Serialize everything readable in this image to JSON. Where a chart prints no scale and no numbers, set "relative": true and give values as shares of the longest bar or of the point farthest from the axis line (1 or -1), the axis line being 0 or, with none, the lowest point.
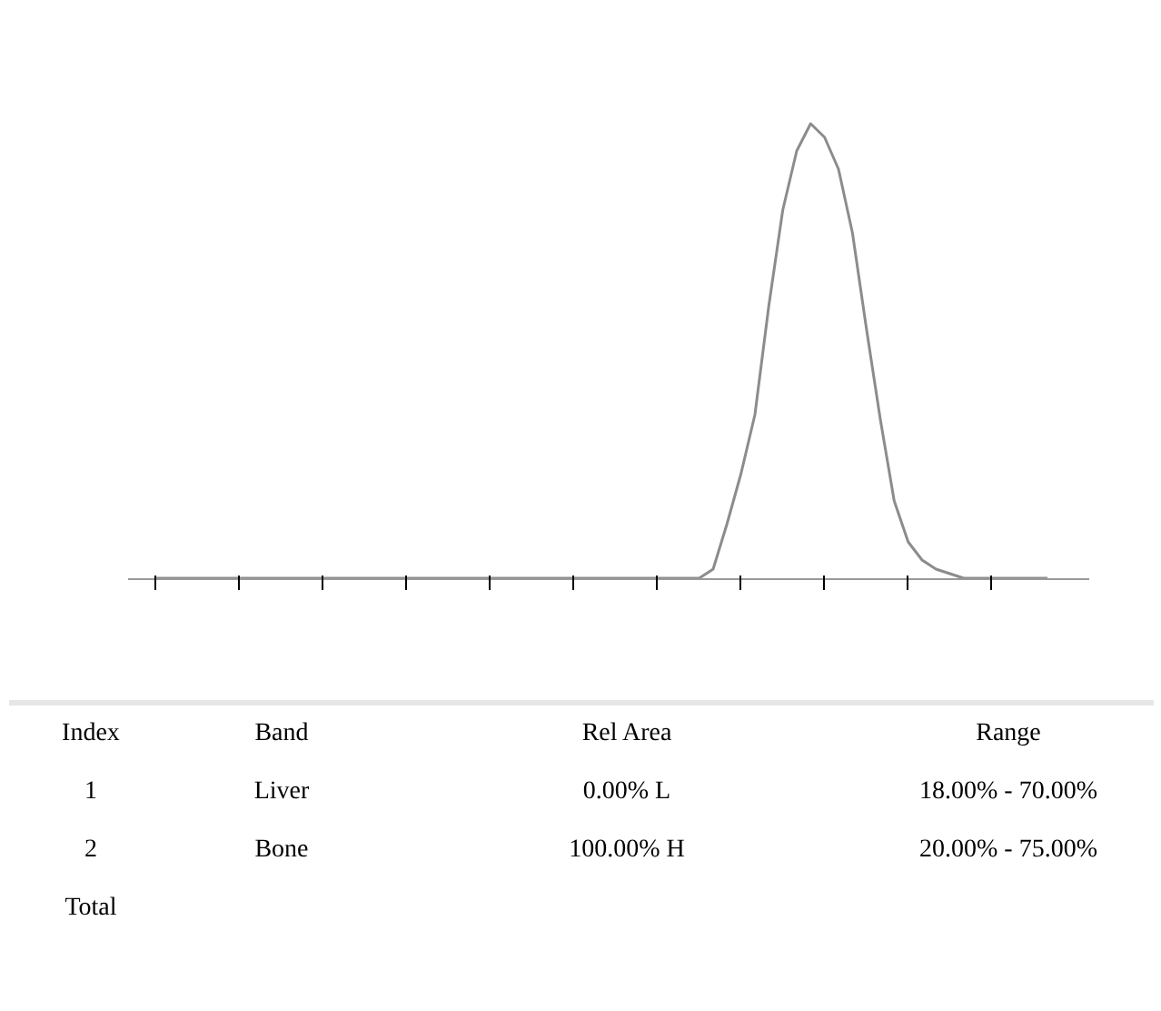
{
  "chart_data": {
    "type": "line",
    "relative": true,
    "categories": [
      null,
      null,
      null,
      null,
      null,
      null,
      null,
      null,
      null,
      null,
      null,
      null,
      null,
      null,
      null,
      null,
      null,
      null,
      null,
      null,
      null,
      null,
      null,
      null,
      null,
      null,
      null,
      null,
      null,
      null,
      null,
      null,
      null,
      null,
      null,
      null,
      null,
      null,
      null,
      null,
      null,
      null,
      null,
      null,
      null,
      null,
      null,
      null,
      null,
      null,
      null,
      null,
      null,
      null,
      null,
      null,
      null,
      null,
      null,
      null,
      null,
      null,
      null,
      null,
      null
    ],
    "series": [
      {
        "color": "#8c8c8c",
        "values": [
          0,
          0,
          0,
          0,
          0,
          0,
          0,
          0,
          0,
          0,
          0,
          0,
          0,
          0,
          0,
          0,
          0,
          0,
          0,
          0,
          0,
          0,
          0,
          0,
          0,
          0,
          0,
          0,
          0,
          0,
          0,
          0,
          0,
          0,
          0,
          0,
          0,
          0,
          0,
          0,
          0.02,
          0.12,
          0.23,
          0.36,
          0.6,
          0.81,
          0.94,
          1,
          0.97,
          0.9,
          0.76,
          0.55,
          0.35,
          0.17,
          0.08,
          0.04,
          0.02,
          0.01,
          0,
          0,
          0,
          0,
          0,
          0,
          0
        ]
      }
    ],
    "annotations": [
      "Index",
      "Band",
      "Rel Area",
      "Range",
      "1",
      "Liver",
      "0.00% L",
      "18.00% - 70.00%",
      "2",
      "Bone",
      "100.00% H",
      "20.00% - 75.00%",
      "Total"
    ],
    "marker": "none",
    "line_style": "solid"
  }
}
